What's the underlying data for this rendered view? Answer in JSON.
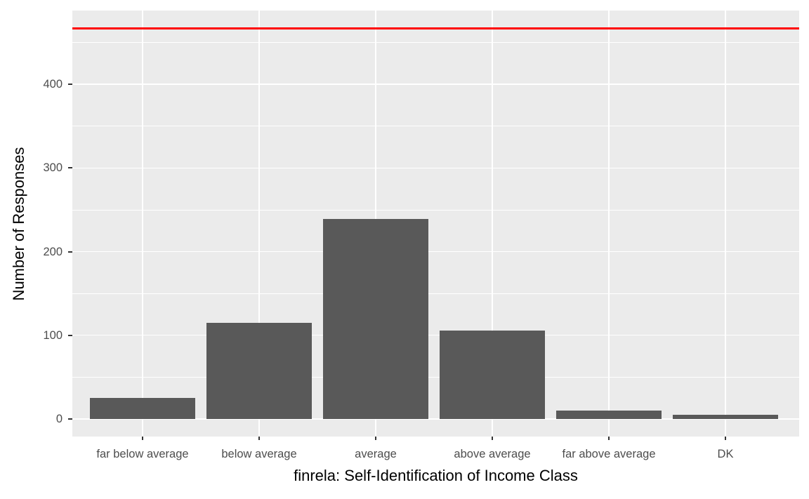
{
  "chart_data": {
    "type": "bar",
    "title": "",
    "xlabel": "finrela: Self-Identification of Income Class",
    "ylabel": "Number of Responses",
    "categories": [
      "far below average",
      "below average",
      "average",
      "above average",
      "far above average",
      "DK"
    ],
    "values": [
      25,
      115,
      239,
      106,
      10,
      5
    ],
    "yticks": [
      0,
      100,
      200,
      300,
      400
    ],
    "yminor": [
      50,
      150,
      250,
      350,
      450
    ],
    "ylim": [
      -21,
      488
    ],
    "grid": true,
    "legend": false,
    "reference_line": {
      "orientation": "horizontal",
      "value": 467,
      "color": "#FF0000"
    },
    "colors": {
      "bar_fill": "#595959",
      "panel_background": "#EBEBEB",
      "gridline": "#FFFFFF",
      "tick_text": "#4D4D4D",
      "axis_title_text": "#000000",
      "tick_mark": "#333333",
      "figure_background": "#FFFFFF"
    }
  }
}
